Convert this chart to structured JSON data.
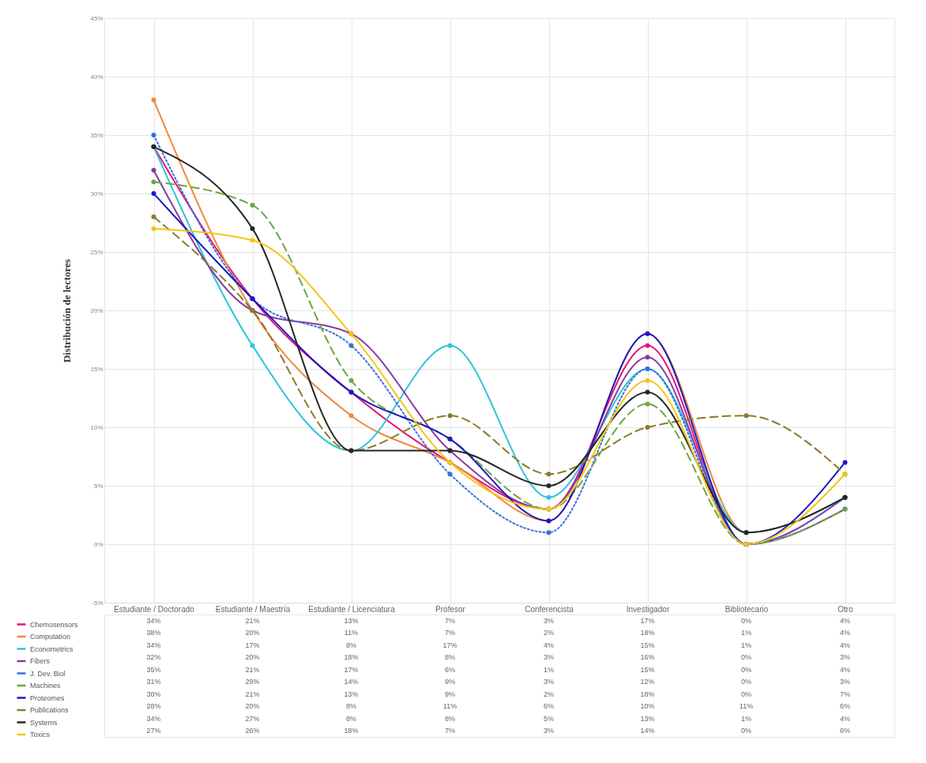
{
  "chart_data": {
    "type": "line",
    "ylabel": "Distribución de lectores",
    "categories": [
      "Estudiante / Doctorado",
      "Estudiante / Maestría",
      "Estudiante / Licenciatura",
      "Profesor",
      "Conferencista",
      "Investigador",
      "Bibliotecario",
      "Otro"
    ],
    "ylim": [
      -5,
      45
    ],
    "yticks": [
      {
        "value": -5,
        "label": "-5%"
      },
      {
        "value": 0,
        "label": "0%"
      },
      {
        "value": 5,
        "label": "5%"
      },
      {
        "value": 10,
        "label": "10%"
      },
      {
        "value": 15,
        "label": "15%"
      },
      {
        "value": 20,
        "label": "20%"
      },
      {
        "value": 25,
        "label": "25%"
      },
      {
        "value": 30,
        "label": "30%"
      },
      {
        "value": 35,
        "label": "35%"
      },
      {
        "value": 40,
        "label": "40%"
      },
      {
        "value": 45,
        "label": "45%"
      }
    ],
    "grid": true,
    "legend": "bottom left",
    "marker": "circle",
    "line_style": "solid",
    "series": [
      {
        "name": "Chemosensors",
        "color": "#e6127a",
        "values": [
          34,
          21,
          13,
          7,
          3,
          17,
          0,
          4
        ],
        "value_labels": [
          "34%",
          "21%",
          "13%",
          "7%",
          "3%",
          "17%",
          "0%",
          "4%"
        ]
      },
      {
        "name": "Computation",
        "color": "#f0883a",
        "values": [
          38,
          20,
          11,
          7,
          2,
          18,
          1,
          4
        ],
        "value_labels": [
          "38%",
          "20%",
          "11%",
          "7%",
          "2%",
          "18%",
          "1%",
          "4%"
        ]
      },
      {
        "name": "Econometrics",
        "color": "#2ec4d6",
        "values": [
          34,
          17,
          8,
          17,
          4,
          15,
          1,
          4
        ],
        "value_labels": [
          "34%",
          "17%",
          "8%",
          "17%",
          "4%",
          "15%",
          "1%",
          "4%"
        ]
      },
      {
        "name": "Fibers",
        "color": "#8a3aa0",
        "values": [
          32,
          20,
          18,
          8,
          3,
          16,
          0,
          3
        ],
        "value_labels": [
          "32%",
          "20%",
          "18%",
          "8%",
          "3%",
          "16%",
          "0%",
          "3%"
        ]
      },
      {
        "name": "J. Dev. Biol",
        "color": "#3a6fd8",
        "line_style": "dotted",
        "values": [
          35,
          21,
          17,
          6,
          1,
          15,
          0,
          4
        ],
        "value_labels": [
          "35%",
          "21%",
          "17%",
          "6%",
          "1%",
          "15%",
          "0%",
          "4%"
        ]
      },
      {
        "name": "Machines",
        "color": "#6aa843",
        "line_style": "dashed",
        "values": [
          31,
          29,
          14,
          9,
          3,
          12,
          0,
          3
        ],
        "value_labels": [
          "31%",
          "29%",
          "14%",
          "9%",
          "3%",
          "12%",
          "0%",
          "3%"
        ]
      },
      {
        "name": "Proteomes",
        "color": "#1a1ac0",
        "values": [
          30,
          21,
          13,
          9,
          2,
          18,
          0,
          7
        ],
        "value_labels": [
          "30%",
          "21%",
          "13%",
          "9%",
          "2%",
          "18%",
          "0%",
          "7%"
        ]
      },
      {
        "name": "Publications",
        "color": "#8c7a2a",
        "line_style": "dashed",
        "values": [
          28,
          20,
          8,
          11,
          6,
          10,
          11,
          6
        ],
        "value_labels": [
          "28%",
          "20%",
          "8%",
          "11%",
          "6%",
          "10%",
          "11%",
          "6%"
        ]
      },
      {
        "name": "Systems",
        "color": "#262626",
        "values": [
          34,
          27,
          8,
          8,
          5,
          13,
          1,
          4
        ],
        "value_labels": [
          "34%",
          "27%",
          "8%",
          "8%",
          "5%",
          "13%",
          "1%",
          "4%"
        ]
      },
      {
        "name": "Toxics",
        "color": "#f5c518",
        "values": [
          27,
          26,
          18,
          7,
          3,
          14,
          0,
          6
        ],
        "value_labels": [
          "27%",
          "26%",
          "18%",
          "7%",
          "3%",
          "14%",
          "0%",
          "6%"
        ]
      }
    ]
  }
}
